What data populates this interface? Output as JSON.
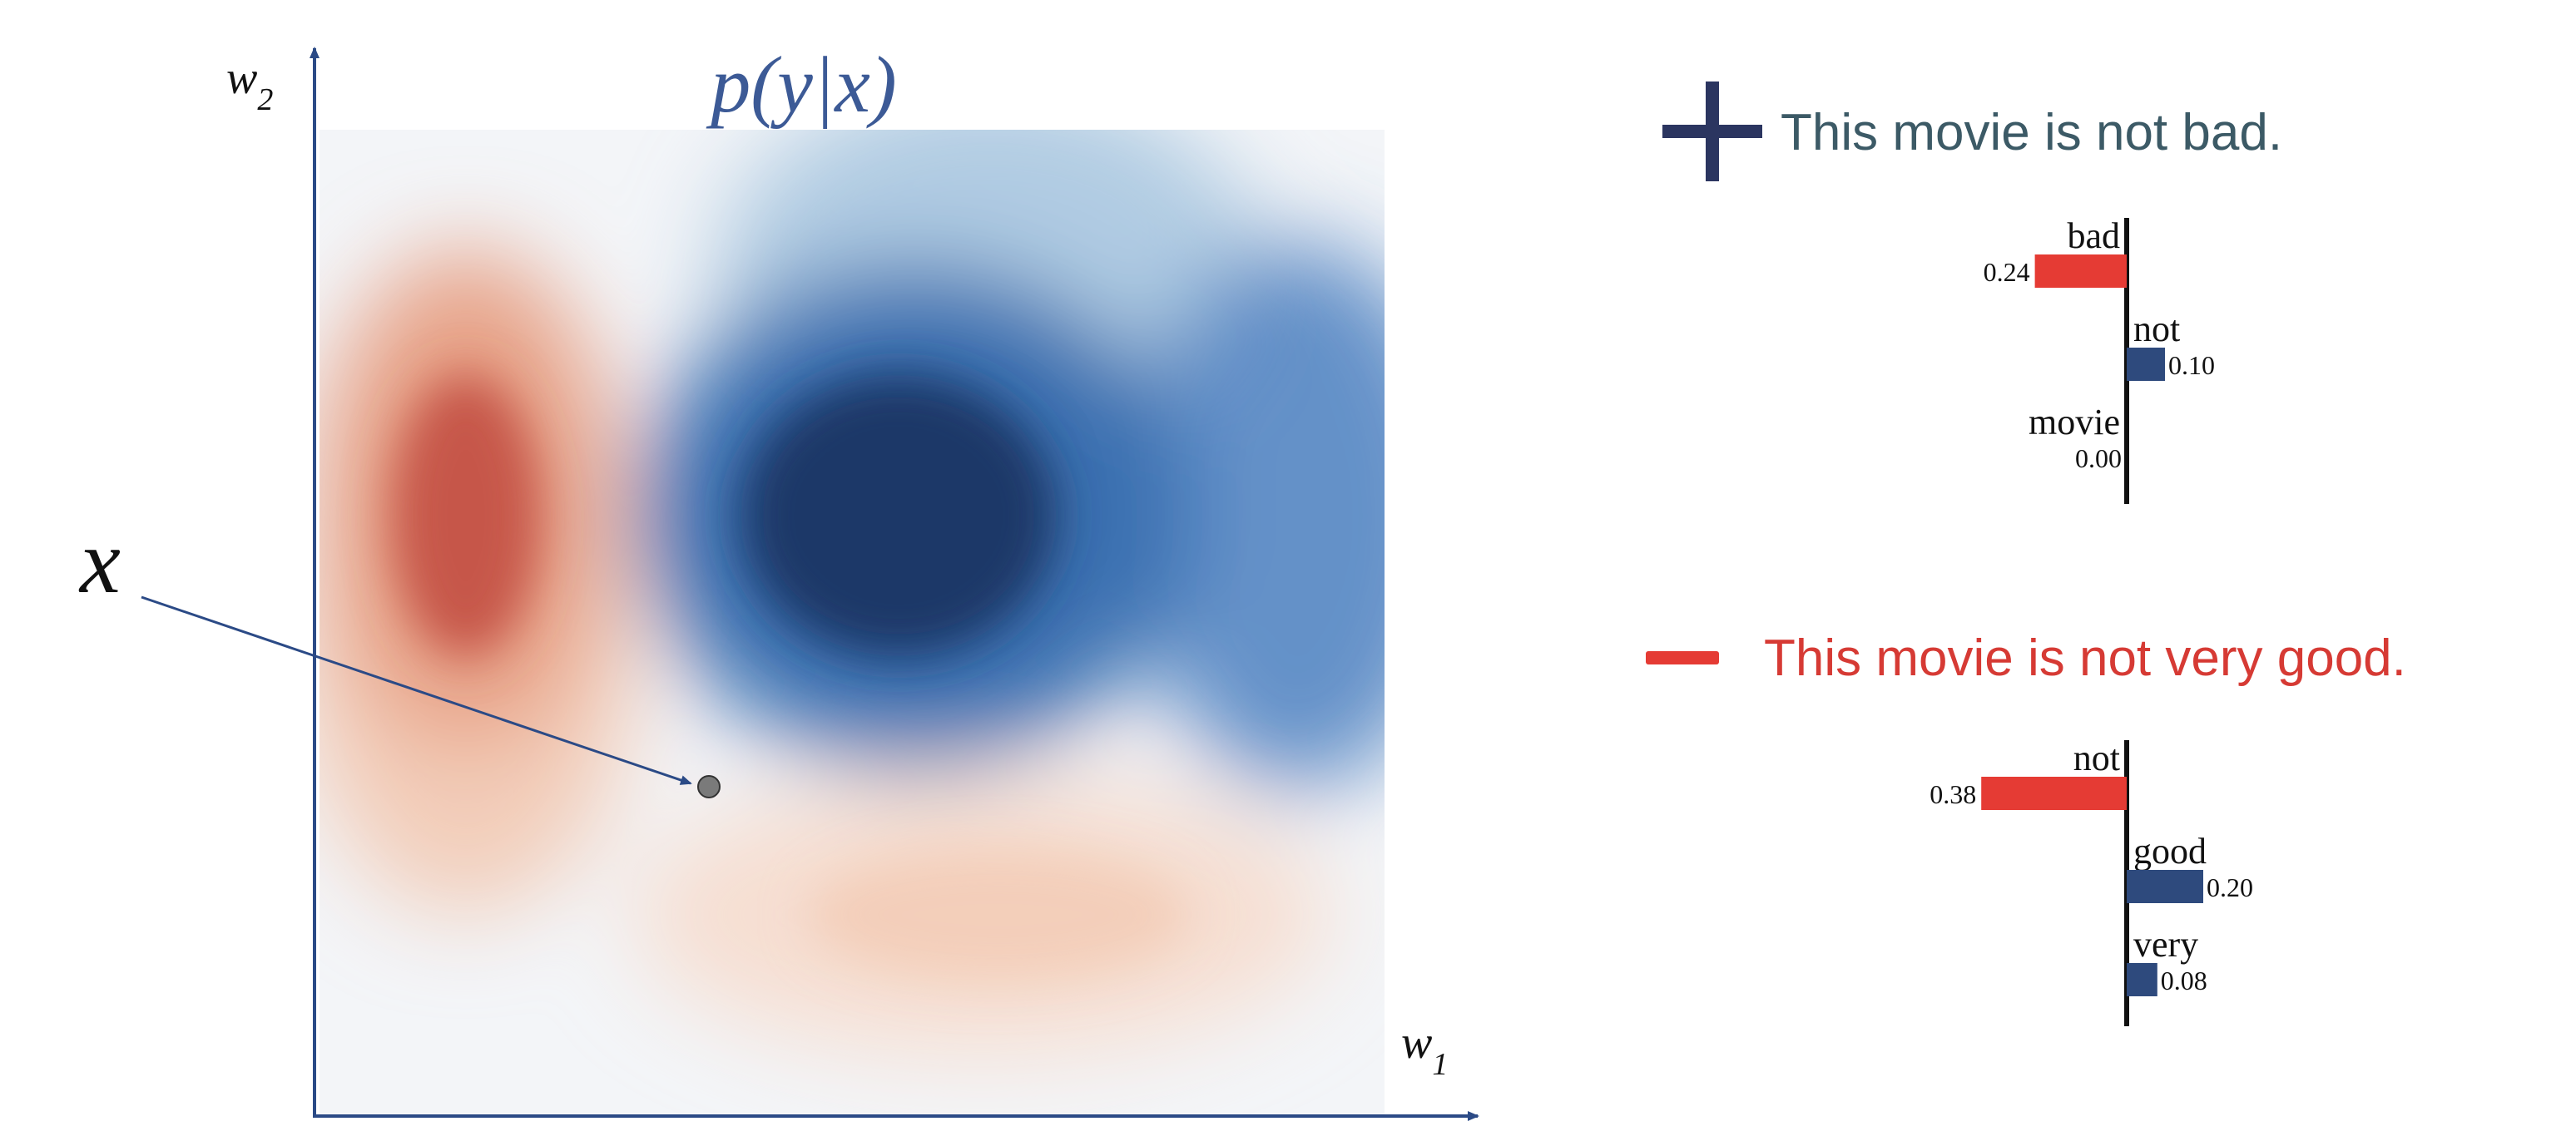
{
  "landscape": {
    "title": "p(y|x)",
    "y_axis_label": "w",
    "y_axis_subscript": "2",
    "x_axis_label": "w",
    "x_axis_subscript": "1",
    "point_label": "x",
    "colors": {
      "positive_blue": "#1f3a6e",
      "negative_red": "#c0473a",
      "axis": "#2b4a86",
      "point": "#7a7a7a"
    }
  },
  "examples": [
    {
      "sign_icon": "plus-icon",
      "sentence": "This movie is not bad.",
      "sentence_color": "#3c5a66",
      "bars": [
        {
          "word": "bad",
          "value": 0.24,
          "value_label": "0.24",
          "color": "#e53b34"
        },
        {
          "word": "not",
          "value": -0.1,
          "value_label": "0.10",
          "color": "#2e4a7d"
        },
        {
          "word": "movie",
          "value": 0.0,
          "value_label": "0.00",
          "color": "#2e4a7d"
        }
      ]
    },
    {
      "sign_icon": "minus-icon",
      "sentence": "This movie is not very good.",
      "sentence_color": "#d63a34",
      "bars": [
        {
          "word": "not",
          "value": 0.38,
          "value_label": "0.38",
          "color": "#e53b34"
        },
        {
          "word": "good",
          "value": -0.2,
          "value_label": "0.20",
          "color": "#2e4a7d"
        },
        {
          "word": "very",
          "value": -0.08,
          "value_label": "0.08",
          "color": "#2e4a7d"
        }
      ]
    }
  ]
}
